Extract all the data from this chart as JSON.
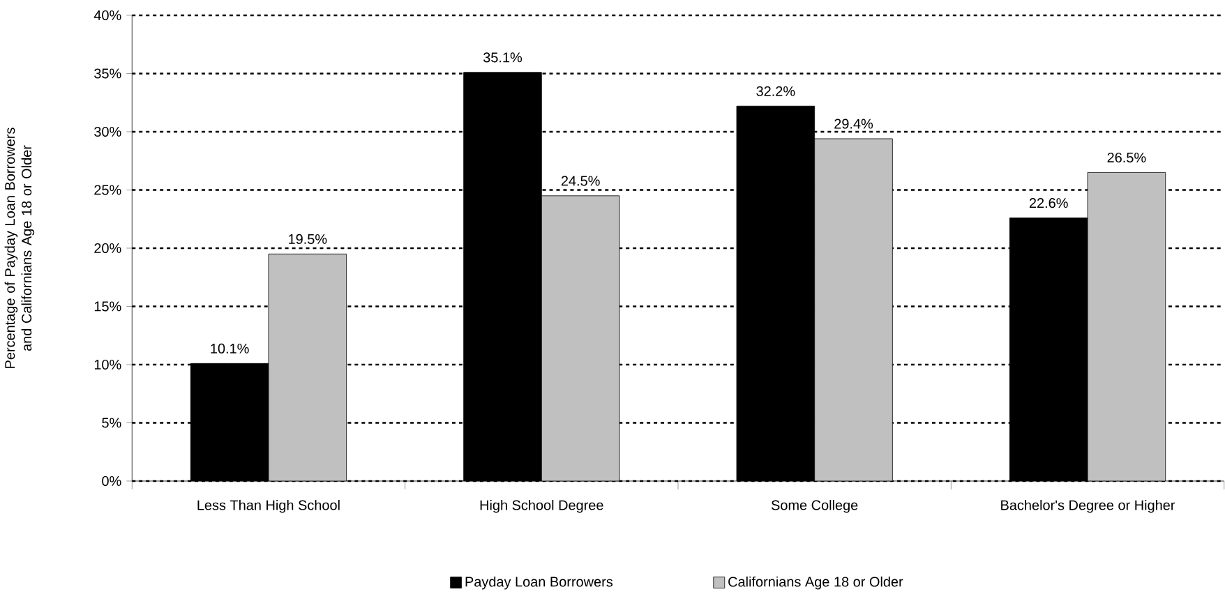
{
  "chart_data": {
    "type": "bar",
    "ylabel": "Percentage of Payday Loan Borrowers and Californians Age 18 or Older",
    "categories": [
      "Less Than High School",
      "High School Degree",
      "Some College",
      "Bachelor's Degree or Higher"
    ],
    "series": [
      {
        "name": "Payday Loan Borrowers",
        "color": "#000000",
        "values": [
          10.1,
          35.1,
          32.2,
          22.6
        ],
        "value_labels": [
          "10.1%",
          "35.1%",
          "32.2%",
          "22.6%"
        ]
      },
      {
        "name": "Californians Age 18 or Older",
        "color": "#c0c0c0",
        "values": [
          19.5,
          24.5,
          29.4,
          26.5
        ],
        "value_labels": [
          "19.5%",
          "24.5%",
          "29.4%",
          "26.5%"
        ]
      }
    ],
    "ylim": [
      0,
      40
    ],
    "yticks": [
      {
        "value": 0,
        "label": "0%"
      },
      {
        "value": 5,
        "label": "5%"
      },
      {
        "value": 10,
        "label": "10%"
      },
      {
        "value": 15,
        "label": "15%"
      },
      {
        "value": 20,
        "label": "20%"
      },
      {
        "value": 25,
        "label": "25%"
      },
      {
        "value": 30,
        "label": "30%"
      },
      {
        "value": 35,
        "label": "35%"
      },
      {
        "value": 40,
        "label": "40%"
      }
    ],
    "grid": "y",
    "legend": "bottom"
  }
}
